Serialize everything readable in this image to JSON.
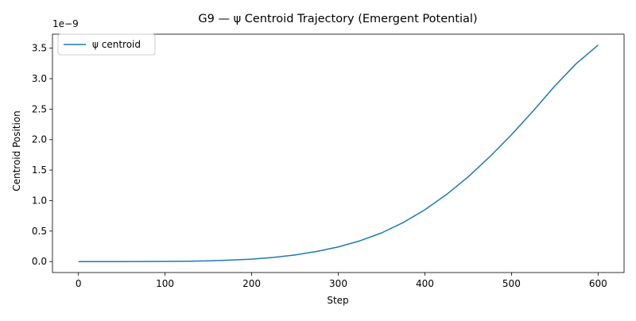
{
  "chart_data": {
    "type": "line",
    "title": "G9 — ψ Centroid Trajectory (Emergent Potential)",
    "xlabel": "Step",
    "ylabel": "Centroid Position",
    "y_offset_label": "1e−9",
    "xlim": [
      -30,
      630
    ],
    "ylim": [
      -0.18,
      3.73
    ],
    "y_scale": "linear, values shown in units of 1e-9",
    "x_ticks": [
      0,
      100,
      200,
      300,
      400,
      500,
      600
    ],
    "y_ticks": [
      0.0,
      0.5,
      1.0,
      1.5,
      2.0,
      2.5,
      3.0,
      3.5
    ],
    "x_tick_labels": [
      "0",
      "100",
      "200",
      "300",
      "400",
      "500",
      "600"
    ],
    "y_tick_labels": [
      "0.0",
      "0.5",
      "1.0",
      "1.5",
      "2.0",
      "2.5",
      "3.0",
      "3.5"
    ],
    "grid": false,
    "legend_position": "top-left",
    "series": [
      {
        "name": "ψ centroid",
        "color": "#1f77b4",
        "x": [
          0,
          50,
          100,
          130,
          150,
          175,
          200,
          225,
          250,
          275,
          300,
          325,
          350,
          375,
          400,
          425,
          450,
          475,
          500,
          525,
          550,
          575,
          600
        ],
        "y": [
          0.0,
          0.0,
          0.002,
          0.006,
          0.012,
          0.023,
          0.04,
          0.068,
          0.108,
          0.165,
          0.24,
          0.34,
          0.47,
          0.64,
          0.85,
          1.1,
          1.39,
          1.72,
          2.08,
          2.47,
          2.88,
          3.25,
          3.55
        ]
      }
    ]
  }
}
